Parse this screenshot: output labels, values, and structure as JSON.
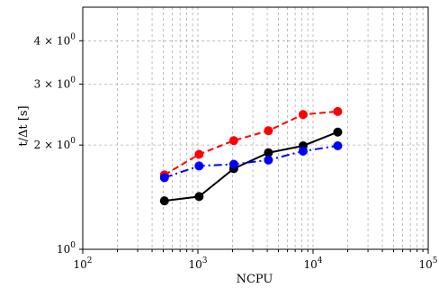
{
  "chart_data": {
    "type": "line",
    "title": "",
    "xlabel": "NCPU",
    "ylabel": "t/Δt [s]",
    "x_scale": "log",
    "y_scale": "log",
    "xlim": [
      100,
      100000
    ],
    "ylim": [
      1.0,
      5.0
    ],
    "grid": true,
    "legend": "none",
    "x_tick_labels": [
      "10^2",
      "10^3",
      "10^4",
      "10^5"
    ],
    "y_tick_labels": [
      "10^0",
      "2 × 10^0",
      "3 × 10^0",
      "4 × 10^0"
    ],
    "x": [
      512,
      1024,
      2048,
      4096,
      8192,
      16384
    ],
    "series": [
      {
        "color": "#ff0000",
        "line_style": "dashed",
        "marker": "circle",
        "values": [
          1.64,
          1.88,
          2.06,
          2.2,
          2.45,
          2.5
        ]
      },
      {
        "color": "#000000",
        "line_style": "solid",
        "marker": "circle",
        "values": [
          1.38,
          1.42,
          1.71,
          1.9,
          1.99,
          2.18
        ]
      },
      {
        "color": "#0000ff",
        "line_style": "dashdot",
        "marker": "circle",
        "values": [
          1.61,
          1.74,
          1.76,
          1.81,
          1.92,
          1.99
        ]
      }
    ]
  }
}
